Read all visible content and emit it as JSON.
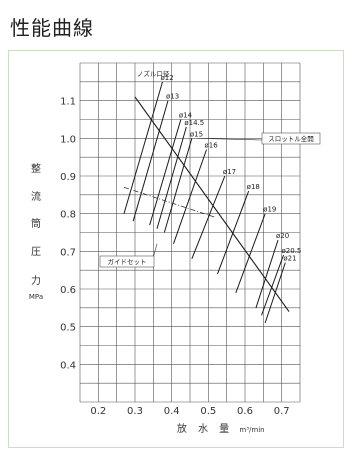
{
  "title": "性能曲線",
  "chart_data": {
    "type": "line",
    "title": "性能曲線",
    "xlabel": "放 水 量",
    "xunit": "m³/min",
    "ylabel_chars": [
      "整",
      "流",
      "筒",
      "圧",
      "力"
    ],
    "yunit": "MPa",
    "xlim": [
      0.15,
      0.75
    ],
    "ylim": [
      0.3,
      1.2
    ],
    "xticks": [
      0.2,
      0.3,
      0.4,
      0.5,
      0.6,
      0.7
    ],
    "xtick_labels": [
      "0.2",
      "0.3",
      "0.4",
      "0.5",
      "0.6",
      "0.7"
    ],
    "yticks": [
      0.4,
      0.5,
      0.6,
      0.7,
      0.8,
      0.9,
      1.0,
      1.1
    ],
    "ytick_labels": [
      "0.4",
      "0.5",
      "0.6",
      "0.7",
      "0.8",
      "0.9",
      "1.0",
      "1.1"
    ],
    "grid": true,
    "nozzle_header": "ノズル口径",
    "series": [
      {
        "name": "ø12",
        "x": [
          0.27,
          0.375
        ],
        "y": [
          0.8,
          1.15
        ]
      },
      {
        "name": "ø13",
        "x": [
          0.295,
          0.39
        ],
        "y": [
          0.78,
          1.1
        ]
      },
      {
        "name": "ø14",
        "x": [
          0.34,
          0.425
        ],
        "y": [
          0.77,
          1.05
        ]
      },
      {
        "name": "ø14.5",
        "x": [
          0.36,
          0.44
        ],
        "y": [
          0.76,
          1.03
        ]
      },
      {
        "name": "ø15",
        "x": [
          0.38,
          0.455
        ],
        "y": [
          0.75,
          1.0
        ]
      },
      {
        "name": "ø16",
        "x": [
          0.405,
          0.495
        ],
        "y": [
          0.72,
          0.97
        ]
      },
      {
        "name": "ø17",
        "x": [
          0.455,
          0.545
        ],
        "y": [
          0.68,
          0.9
        ]
      },
      {
        "name": "ø18",
        "x": [
          0.525,
          0.61
        ],
        "y": [
          0.64,
          0.86
        ]
      },
      {
        "name": "ø19",
        "x": [
          0.575,
          0.655
        ],
        "y": [
          0.59,
          0.8
        ]
      },
      {
        "name": "ø20",
        "x": [
          0.63,
          0.69
        ],
        "y": [
          0.55,
          0.73
        ]
      },
      {
        "name": "ø20.5",
        "x": [
          0.645,
          0.705
        ],
        "y": [
          0.53,
          0.69
        ]
      },
      {
        "name": "ø21",
        "x": [
          0.655,
          0.71
        ],
        "y": [
          0.51,
          0.67
        ]
      }
    ],
    "throttle_line": {
      "label": "スロットル全開",
      "x": [
        0.3,
        0.72
      ],
      "y": [
        1.11,
        0.54
      ]
    },
    "guide_line": {
      "label": "ガイドセット",
      "x": [
        0.27,
        0.52
      ],
      "y": [
        0.87,
        0.79
      ]
    }
  }
}
